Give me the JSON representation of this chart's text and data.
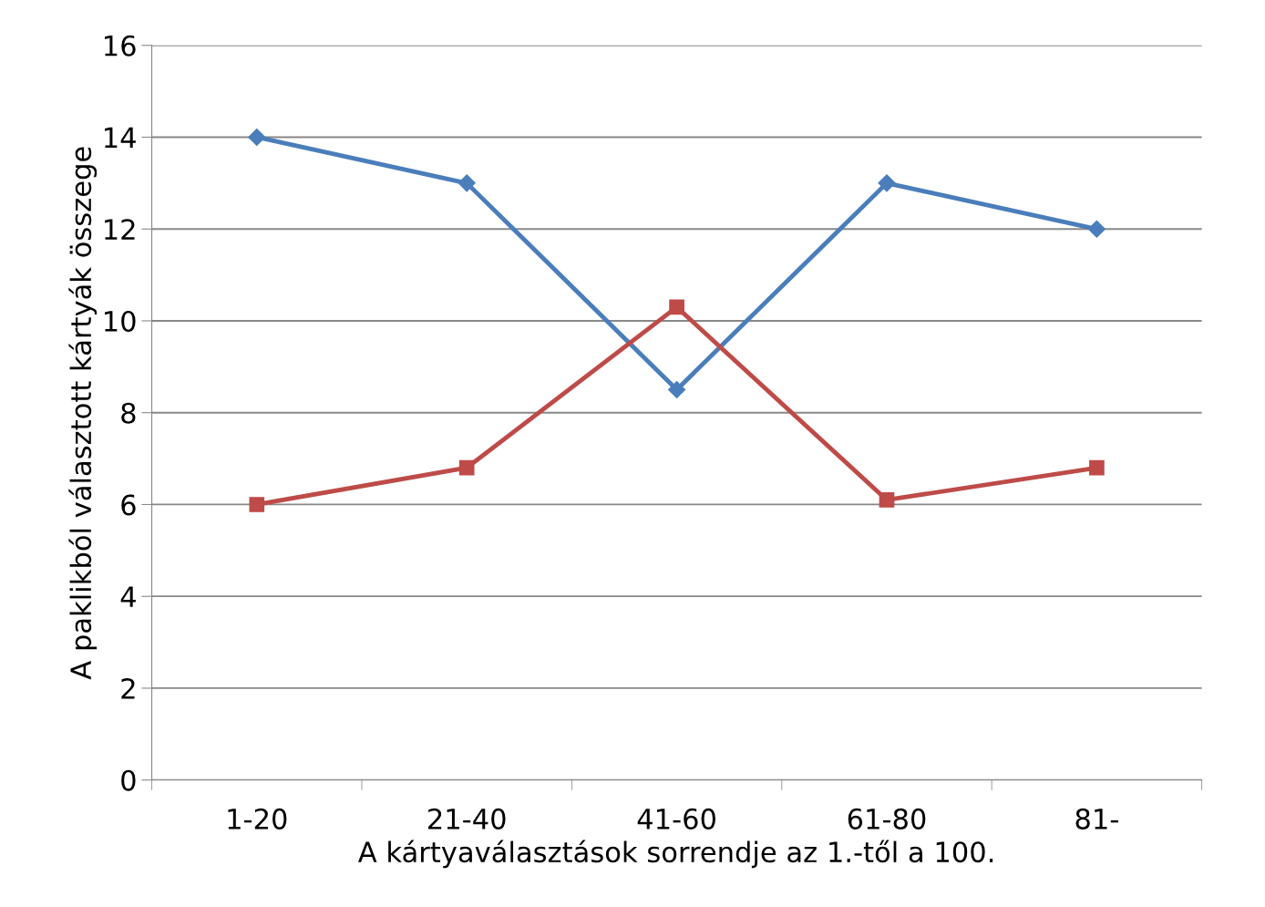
{
  "chart_data": {
    "type": "line",
    "xlabel": "A kártyaválasztások sorrendje az 1.-től a 100.",
    "ylabel": "A paklikból választott kártyák összege",
    "categories": [
      "1-20",
      "21-40",
      "41-60",
      "61-80",
      "81-"
    ],
    "series": [
      {
        "color": "#4a7ebb",
        "marker": "diamond",
        "values": [
          14,
          13,
          8.5,
          13,
          12
        ]
      },
      {
        "color": "#be4b48",
        "marker": "square",
        "values": [
          6,
          6.8,
          10.3,
          6.1,
          6.8
        ]
      }
    ],
    "ylim": [
      0,
      16
    ],
    "yticks": [
      0,
      2,
      4,
      6,
      8,
      10,
      12,
      14,
      16
    ],
    "grid": "y",
    "line_style": "solid"
  }
}
